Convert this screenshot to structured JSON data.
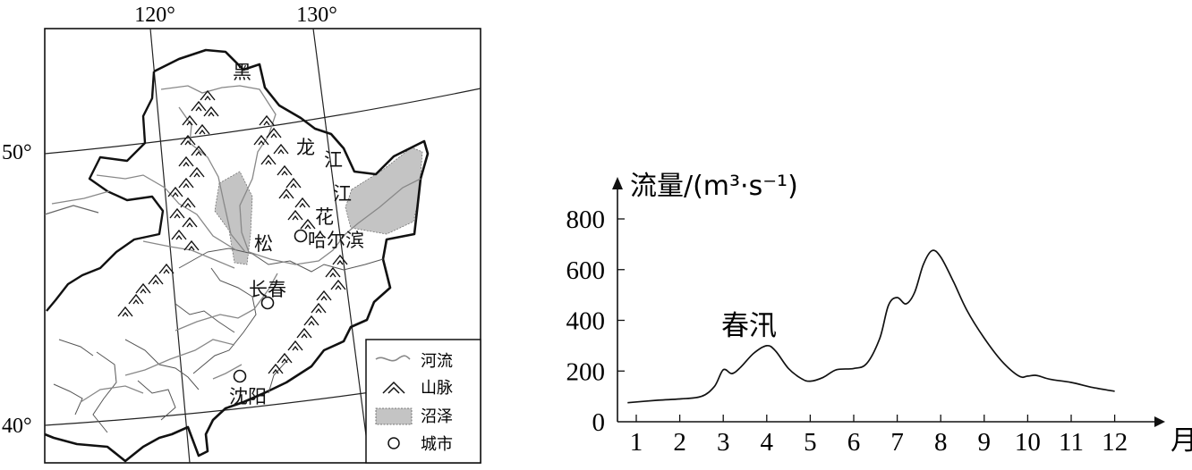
{
  "map": {
    "lon_labels": [
      "120°",
      "130°"
    ],
    "lat_labels": [
      "50°",
      "40°"
    ],
    "place_labels": {
      "hei": "黑",
      "long": "龙",
      "jiang1": "江",
      "jiang2": "江",
      "hua": "花",
      "song": "松",
      "harbin": "哈尔滨",
      "changchun": "长春",
      "shenyang": "沈阳"
    },
    "legend": {
      "river": "河流",
      "mountain": "山脉",
      "swamp": "沼泽",
      "city": "城市"
    }
  },
  "chart": {
    "ylabel": "流量/(m³·s⁻¹)",
    "xunit": "月",
    "annotation": "春汛"
  },
  "chart_data": {
    "type": "line",
    "xlabel": "月",
    "ylabel": "流量/(m³·s⁻¹)",
    "xlim": [
      0.75,
      12.8
    ],
    "ylim": [
      0,
      800
    ],
    "x_ticks": [
      "1",
      "2",
      "3",
      "4",
      "5",
      "6",
      "7",
      "8",
      "9",
      "10",
      "11",
      "12"
    ],
    "y_ticks": [
      "0",
      "200",
      "400",
      "600",
      "800"
    ],
    "annotations": [
      {
        "text": "春汛",
        "x": 3.9,
        "y": 330
      }
    ],
    "series": [
      {
        "x": [
          0.8,
          1.5,
          2.0,
          2.5,
          2.8,
          3.0,
          3.2,
          3.4,
          3.7,
          4.0,
          4.2,
          4.5,
          4.8,
          5.0,
          5.3,
          5.6,
          6.0,
          6.3,
          6.6,
          6.8,
          7.0,
          7.2,
          7.4,
          7.6,
          7.8,
          8.0,
          8.3,
          8.6,
          9.0,
          9.4,
          9.8,
          10.0,
          10.2,
          10.5,
          11.0,
          11.5,
          12.0
        ],
        "y": [
          75,
          85,
          90,
          100,
          140,
          205,
          190,
          215,
          270,
          300,
          280,
          210,
          170,
          160,
          175,
          205,
          210,
          230,
          330,
          460,
          490,
          465,
          510,
          620,
          675,
          650,
          550,
          440,
          330,
          240,
          180,
          180,
          183,
          168,
          155,
          135,
          120
        ]
      }
    ]
  }
}
